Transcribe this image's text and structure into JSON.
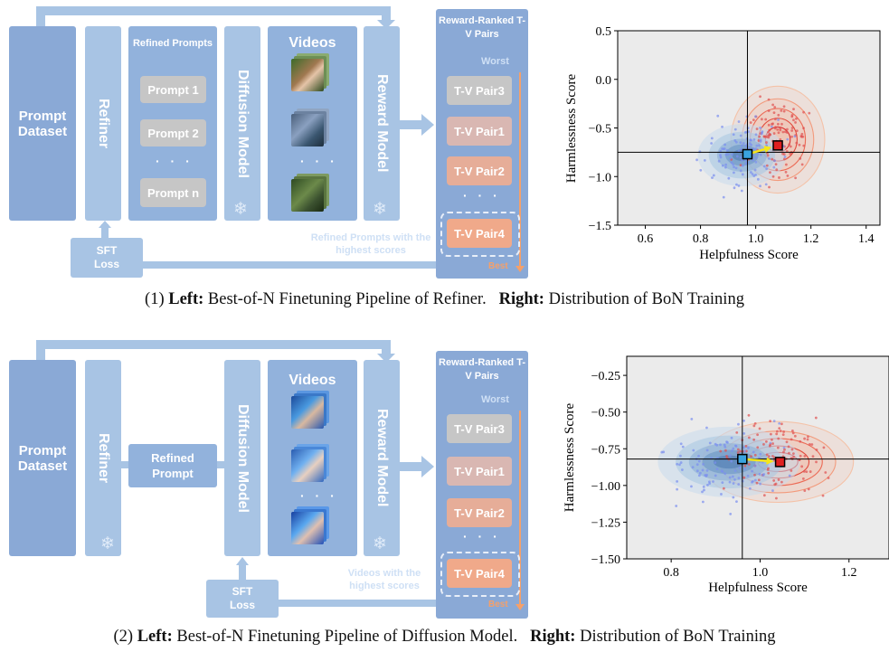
{
  "panel1": {
    "prompt_dataset": "Prompt Dataset",
    "refiner": "Refiner",
    "refined_prompts_title": "Refined Prompts",
    "prompts": [
      "Prompt 1",
      "Prompt 2",
      "Prompt n"
    ],
    "ellipsis": "· · ·",
    "diffusion_model": "Diffusion Model",
    "videos_title": "Videos",
    "reward_model": "Reward Model",
    "ranked_title": "Reward-Ranked T-V Pairs",
    "worst": "Worst",
    "best": "Best",
    "pairs": [
      "T-V Pair3",
      "T-V Pair1",
      "T-V Pair2",
      "T-V Pair4"
    ],
    "sft_loss": "SFT Loss",
    "feedback_note": "Refined Prompts with the highest scores",
    "caption_num": "(1)",
    "caption_left_label": "Left:",
    "caption_left_text": "Best-of-N Finetuning Pipeline of Refiner.",
    "caption_right_label": "Right:",
    "caption_right_text": "Distribution of BoN Training"
  },
  "panel2": {
    "prompt_dataset": "Prompt Dataset",
    "refiner": "Refiner",
    "refined_prompt": "Refined Prompt",
    "diffusion_model": "Diffusion Model",
    "videos_title": "Videos",
    "reward_model": "Reward Model",
    "ranked_title": "Reward-Ranked T-V Pairs",
    "worst": "Worst",
    "best": "Best",
    "pairs": [
      "T-V Pair3",
      "T-V Pair1",
      "T-V Pair2",
      "T-V Pair4"
    ],
    "ellipsis": "· · ·",
    "sft_loss": "SFT Loss",
    "feedback_note": "Videos with the highest scores",
    "caption_num": "(2)",
    "caption_left_label": "Left:",
    "caption_left_text": "Best-of-N Finetuning Pipeline of Diffusion Model.",
    "caption_right_label": "Right:",
    "caption_right_text": "Distribution of BoN Training"
  },
  "colors": {
    "block_light": "#a8c4e4",
    "block_dark": "#8aa9d6",
    "pair_gray": "#c6c6c6",
    "pair_rose": "#d9b7b2",
    "pair_orange": "#f0a98a",
    "best_orange": "#f5a06a",
    "start_blue": "#3aa3e0",
    "end_red": "#e02020",
    "arrow_yellow": "#f5e61a"
  },
  "chart_data": [
    {
      "type": "scatter",
      "xlabel": "Helpfulness Score",
      "ylabel": "Harmlessness Score",
      "xlim": [
        0.5,
        1.45
      ],
      "ylim": [
        -1.5,
        0.5
      ],
      "xticks": [
        "0.6",
        "0.8",
        "1.0",
        "1.2",
        "1.4"
      ],
      "yticks": [
        "0.5",
        "0.0",
        "−0.5",
        "−1.0",
        "−1.5"
      ],
      "xtick_vals": [
        0.6,
        0.8,
        1.0,
        1.2,
        1.4
      ],
      "ytick_vals": [
        0.5,
        0.0,
        -0.5,
        -1.0,
        -1.5
      ],
      "crosshair": {
        "x": 0.97,
        "y": -0.75
      },
      "start": {
        "x": 0.97,
        "y": -0.77
      },
      "end": {
        "x": 1.08,
        "y": -0.68
      },
      "before_center": {
        "x": 0.95,
        "y": -0.78
      },
      "after_center": {
        "x": 1.08,
        "y": -0.62
      }
    },
    {
      "type": "scatter",
      "xlabel": "Helpfulness Score",
      "ylabel": "Harmlessness Score",
      "xlim": [
        0.7,
        1.29
      ],
      "ylim": [
        -1.5,
        -0.12
      ],
      "xticks": [
        "0.8",
        "1.0",
        "1.2"
      ],
      "yticks": [
        "−0.25",
        "−0.50",
        "−0.75",
        "−1.00",
        "−1.25",
        "−1.50"
      ],
      "xtick_vals": [
        0.8,
        1.0,
        1.2
      ],
      "ytick_vals": [
        -0.25,
        -0.5,
        -0.75,
        -1.0,
        -1.25,
        -1.5
      ],
      "crosshair": {
        "x": 0.96,
        "y": -0.82
      },
      "start": {
        "x": 0.96,
        "y": -0.82
      },
      "end": {
        "x": 1.045,
        "y": -0.84
      },
      "before_center": {
        "x": 0.93,
        "y": -0.84
      },
      "after_center": {
        "x": 1.04,
        "y": -0.84
      }
    }
  ]
}
